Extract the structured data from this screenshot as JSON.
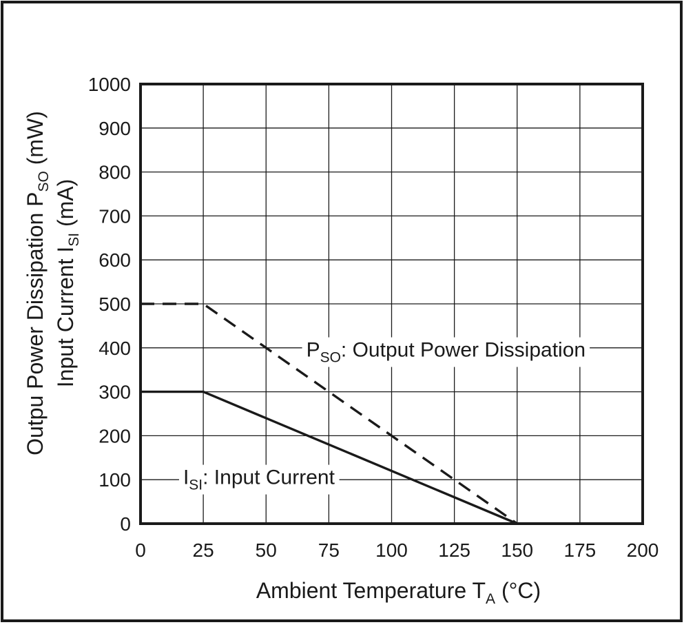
{
  "chart_data": {
    "type": "line",
    "xlabel": {
      "main": "Ambient Temperature T",
      "sub": "A",
      "unit": " (°C)"
    },
    "ylabel": {
      "line1": {
        "main": "Outpu Power Dissipation P",
        "sub": "SO",
        "unit": " (mW)"
      },
      "line2": {
        "main": "Input Current I",
        "sub": "SI",
        "unit": " (mA)"
      }
    },
    "xlim": [
      0,
      200
    ],
    "ylim": [
      0,
      1000
    ],
    "xticks": [
      0,
      25,
      50,
      75,
      100,
      125,
      150,
      175,
      200
    ],
    "yticks": [
      0,
      100,
      200,
      300,
      400,
      500,
      600,
      700,
      800,
      900,
      1000
    ],
    "grid": true,
    "series": [
      {
        "name": "Output Power Dissipation",
        "style": "dashed",
        "color": "#1a1a1a",
        "points": [
          [
            0,
            500
          ],
          [
            25,
            500
          ],
          [
            150,
            0
          ]
        ]
      },
      {
        "name": "Input Current",
        "style": "solid",
        "color": "#1a1a1a",
        "points": [
          [
            0,
            300
          ],
          [
            25,
            300
          ],
          [
            150,
            0
          ]
        ]
      }
    ],
    "annotations": [
      {
        "series": "Output Power Dissipation",
        "main": "P",
        "sub": "SO",
        "rest": ": Output Power Dissipation",
        "at": [
          66,
          380
        ]
      },
      {
        "series": "Input Current",
        "main": "I",
        "sub": "SI",
        "rest": ": Input Current",
        "at": [
          17,
          90
        ]
      }
    ]
  }
}
